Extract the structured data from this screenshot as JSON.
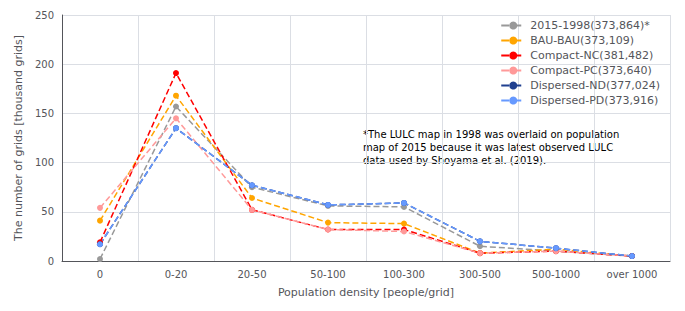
{
  "chart_data": {
    "type": "line",
    "xlabel": "Population density [people/grid]",
    "ylabel": "The number of grids [thousand grids]",
    "categories": [
      "0",
      "0-20",
      "20-50",
      "50-100",
      "100-300",
      "300-500",
      "500-1000",
      "over 1000"
    ],
    "series": [
      {
        "name": "2015-1998(373,864)*",
        "color": "#999999",
        "values": [
          2,
          157,
          75,
          56,
          55,
          15,
          10,
          5
        ]
      },
      {
        "name": "BAU-BAU(373,109)",
        "color": "#FFA500",
        "values": [
          41,
          168,
          64,
          39,
          38,
          8,
          12,
          5
        ]
      },
      {
        "name": "Compact-NC(381,482)",
        "color": "#FF0000",
        "values": [
          19,
          191,
          52,
          32,
          32,
          8,
          10,
          5
        ]
      },
      {
        "name": "Compact-PC(373,640)",
        "color": "#FF9999",
        "values": [
          54,
          145,
          52,
          32,
          30,
          8,
          10,
          5
        ]
      },
      {
        "name": "Dispersed-ND(377,024)",
        "color": "#1F3F8F",
        "values": [
          17,
          135,
          77,
          57,
          59,
          20,
          13,
          5
        ]
      },
      {
        "name": "Dispersed-PD(373,916)",
        "color": "#6699FF",
        "values": [
          17,
          135,
          77,
          57,
          59,
          20,
          13,
          5
        ]
      }
    ],
    "line_style": "dashed",
    "marker": "circle",
    "ylim": [
      0,
      250
    ],
    "yticks": [
      0,
      50,
      100,
      150,
      200,
      250
    ],
    "grid": true,
    "legend": "upper right",
    "annotation": "*The LULC map in 1998 was overlaid on population\nmap of 2015 because it was latest observed LULC\ndata used by Shoyama et al. (2019)."
  }
}
